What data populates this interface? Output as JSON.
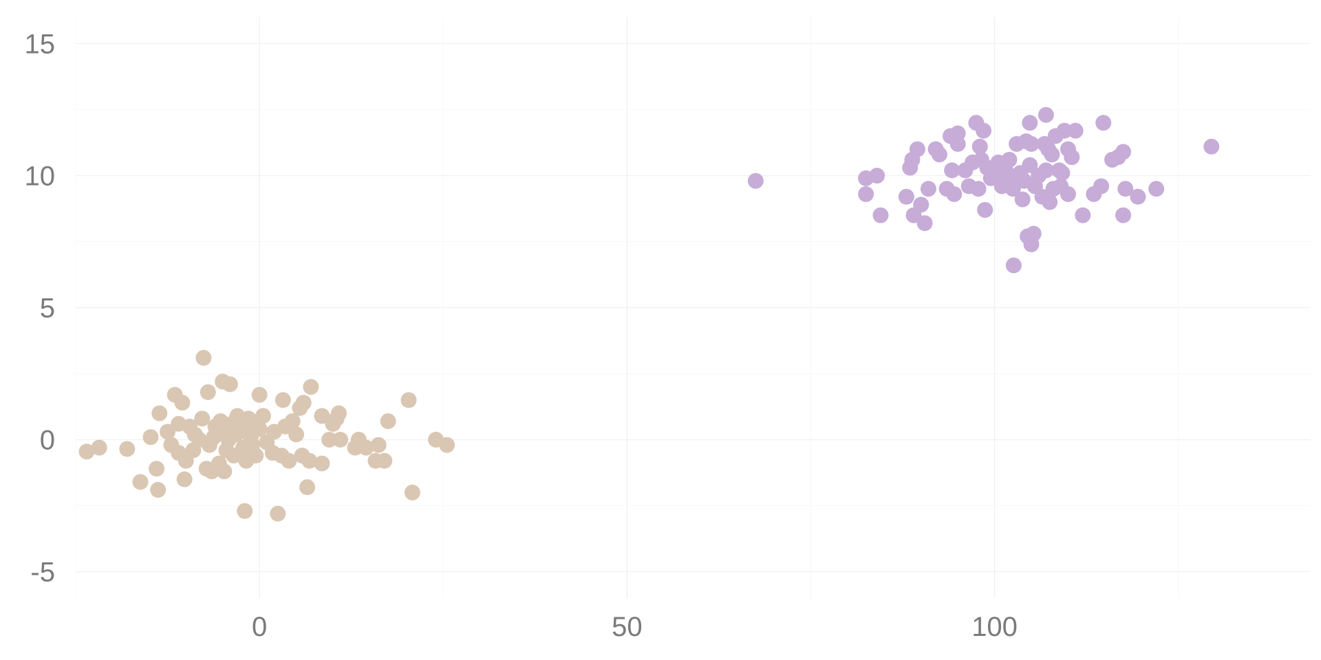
{
  "chart_data": {
    "type": "scatter",
    "title": "",
    "xlabel": "",
    "ylabel": "",
    "xlim": [
      -25,
      143
    ],
    "ylim": [
      -6,
      16
    ],
    "x_ticks": [
      0,
      50,
      100
    ],
    "x_tick_labels": [
      "0",
      "50",
      "100"
    ],
    "y_ticks": [
      -5,
      0,
      5,
      10,
      15
    ],
    "y_tick_labels": [
      "-5",
      "0",
      "5",
      "10",
      "15"
    ],
    "grid": true,
    "legend": "none",
    "series": [
      {
        "color": "#d9c7b3",
        "points": [
          [
            -23.5,
            -0.45
          ],
          [
            -21.8,
            -0.3
          ],
          [
            -18,
            -0.35
          ],
          [
            -16.2,
            -1.6
          ],
          [
            -14.8,
            0.1
          ],
          [
            -14,
            -1.1
          ],
          [
            -13.8,
            -1.9
          ],
          [
            -13.6,
            1.0
          ],
          [
            -12.5,
            0.3
          ],
          [
            -12,
            -0.2
          ],
          [
            -11.5,
            1.7
          ],
          [
            -11,
            0.6
          ],
          [
            -11,
            -0.5
          ],
          [
            -10.5,
            1.4
          ],
          [
            -10.2,
            -1.5
          ],
          [
            -10,
            -0.8
          ],
          [
            -9.5,
            0.5
          ],
          [
            -9,
            -0.4
          ],
          [
            -8.8,
            0.2
          ],
          [
            -8.2,
            0
          ],
          [
            -7.8,
            0.8
          ],
          [
            -7.6,
            3.1
          ],
          [
            -7.2,
            -1.1
          ],
          [
            -7,
            1.8
          ],
          [
            -6.8,
            -0.2
          ],
          [
            -6.5,
            -1.2
          ],
          [
            -6.2,
            0.1
          ],
          [
            -6,
            0.5
          ],
          [
            -5.5,
            -0.9
          ],
          [
            -5.3,
            0.7
          ],
          [
            -5,
            2.2
          ],
          [
            -5,
            0.3
          ],
          [
            -4.8,
            -1.2
          ],
          [
            -4.5,
            -0.4
          ],
          [
            -4.2,
            0
          ],
          [
            -4,
            2.1
          ],
          [
            -3.8,
            0.6
          ],
          [
            -3.5,
            -0.6
          ],
          [
            -3.2,
            0.2
          ],
          [
            -3,
            0.9
          ],
          [
            -2.5,
            0.4
          ],
          [
            -2.2,
            -0.3
          ],
          [
            -2,
            -2.7
          ],
          [
            -1.8,
            -0.8
          ],
          [
            -1.5,
            0.8
          ],
          [
            -1.2,
            0.1
          ],
          [
            -1,
            -0.2
          ],
          [
            -0.8,
            0.6
          ],
          [
            -0.5,
            -0.6
          ],
          [
            0,
            1.7
          ],
          [
            0,
            0.4
          ],
          [
            0.5,
            0.9
          ],
          [
            1,
            -0.1
          ],
          [
            1.8,
            -0.5
          ],
          [
            2,
            0.3
          ],
          [
            2.5,
            -2.8
          ],
          [
            3,
            -0.6
          ],
          [
            3.2,
            1.5
          ],
          [
            3.5,
            0.5
          ],
          [
            4,
            -0.8
          ],
          [
            4.5,
            0.7
          ],
          [
            5,
            0.2
          ],
          [
            5.5,
            1.2
          ],
          [
            5.8,
            -0.6
          ],
          [
            6,
            1.4
          ],
          [
            6.5,
            -1.8
          ],
          [
            6.8,
            -0.8
          ],
          [
            7,
            2.0
          ],
          [
            8.5,
            0.9
          ],
          [
            8.5,
            -0.9
          ],
          [
            9.5,
            0
          ],
          [
            10,
            0.6
          ],
          [
            10.5,
            0.8
          ],
          [
            10.8,
            1.0
          ],
          [
            11,
            0
          ],
          [
            13,
            -0.3
          ],
          [
            13.5,
            0
          ],
          [
            14.5,
            -0.3
          ],
          [
            15.8,
            -0.8
          ],
          [
            16.2,
            -0.2
          ],
          [
            17,
            -0.8
          ],
          [
            17.5,
            0.7
          ],
          [
            20.3,
            1.5
          ],
          [
            20.8,
            -2.0
          ],
          [
            24,
            0
          ],
          [
            25.5,
            -0.2
          ]
        ]
      },
      {
        "color": "#c6acd7",
        "points": [
          [
            67.5,
            9.8
          ],
          [
            82.5,
            9.9
          ],
          [
            82.5,
            9.3
          ],
          [
            84,
            10
          ],
          [
            84.5,
            8.5
          ],
          [
            88,
            9.2
          ],
          [
            88.5,
            10.3
          ],
          [
            88.8,
            10.6
          ],
          [
            89,
            8.5
          ],
          [
            89.5,
            11
          ],
          [
            90,
            8.9
          ],
          [
            90.5,
            8.2
          ],
          [
            91,
            9.5
          ],
          [
            92,
            11
          ],
          [
            92.5,
            10.8
          ],
          [
            93.5,
            9.5
          ],
          [
            94,
            11.5
          ],
          [
            94.2,
            10.2
          ],
          [
            94.5,
            9.3
          ],
          [
            95,
            11.6
          ],
          [
            95,
            11.2
          ],
          [
            96,
            10.2
          ],
          [
            96.5,
            9.6
          ],
          [
            97,
            10.5
          ],
          [
            97.5,
            12
          ],
          [
            97.8,
            9.5
          ],
          [
            98,
            11.1
          ],
          [
            98.2,
            10.6
          ],
          [
            98.5,
            11.7
          ],
          [
            98.7,
            8.7
          ],
          [
            99,
            10.3
          ],
          [
            99.5,
            9.9
          ],
          [
            100,
            10
          ],
          [
            100.5,
            10.5
          ],
          [
            101,
            9.6
          ],
          [
            101.5,
            10.2
          ],
          [
            102,
            10.6
          ],
          [
            102,
            9.8
          ],
          [
            102.5,
            9.5
          ],
          [
            102.6,
            6.6
          ],
          [
            103,
            11.2
          ],
          [
            103.5,
            10.1
          ],
          [
            103.8,
            9.1
          ],
          [
            104,
            9.8
          ],
          [
            104.3,
            11.3
          ],
          [
            104.5,
            7.7
          ],
          [
            104.8,
            12
          ],
          [
            104.8,
            10.4
          ],
          [
            105,
            11.2
          ],
          [
            105,
            7.4
          ],
          [
            105.3,
            7.8
          ],
          [
            105.5,
            9.6
          ],
          [
            106,
            10
          ],
          [
            106.5,
            9.2
          ],
          [
            106.8,
            11.2
          ],
          [
            107,
            12.3
          ],
          [
            107,
            10.2
          ],
          [
            107.3,
            11
          ],
          [
            107.5,
            9.0
          ],
          [
            107.8,
            10.8
          ],
          [
            108,
            9.5
          ],
          [
            108.3,
            11.5
          ],
          [
            108.8,
            10.2
          ],
          [
            109,
            9.6
          ],
          [
            109.2,
            10.1
          ],
          [
            109.5,
            11.7
          ],
          [
            110,
            11
          ],
          [
            110,
            9.3
          ],
          [
            110.5,
            10.7
          ],
          [
            111,
            11.7
          ],
          [
            112,
            8.5
          ],
          [
            113.5,
            9.3
          ],
          [
            114.5,
            9.6
          ],
          [
            114.8,
            12
          ],
          [
            116,
            10.6
          ],
          [
            116.8,
            10.7
          ],
          [
            117.5,
            10.9
          ],
          [
            117.5,
            8.5
          ],
          [
            117.8,
            9.5
          ],
          [
            119.5,
            9.2
          ],
          [
            122,
            9.5
          ],
          [
            129.5,
            11.1
          ]
        ]
      }
    ]
  }
}
